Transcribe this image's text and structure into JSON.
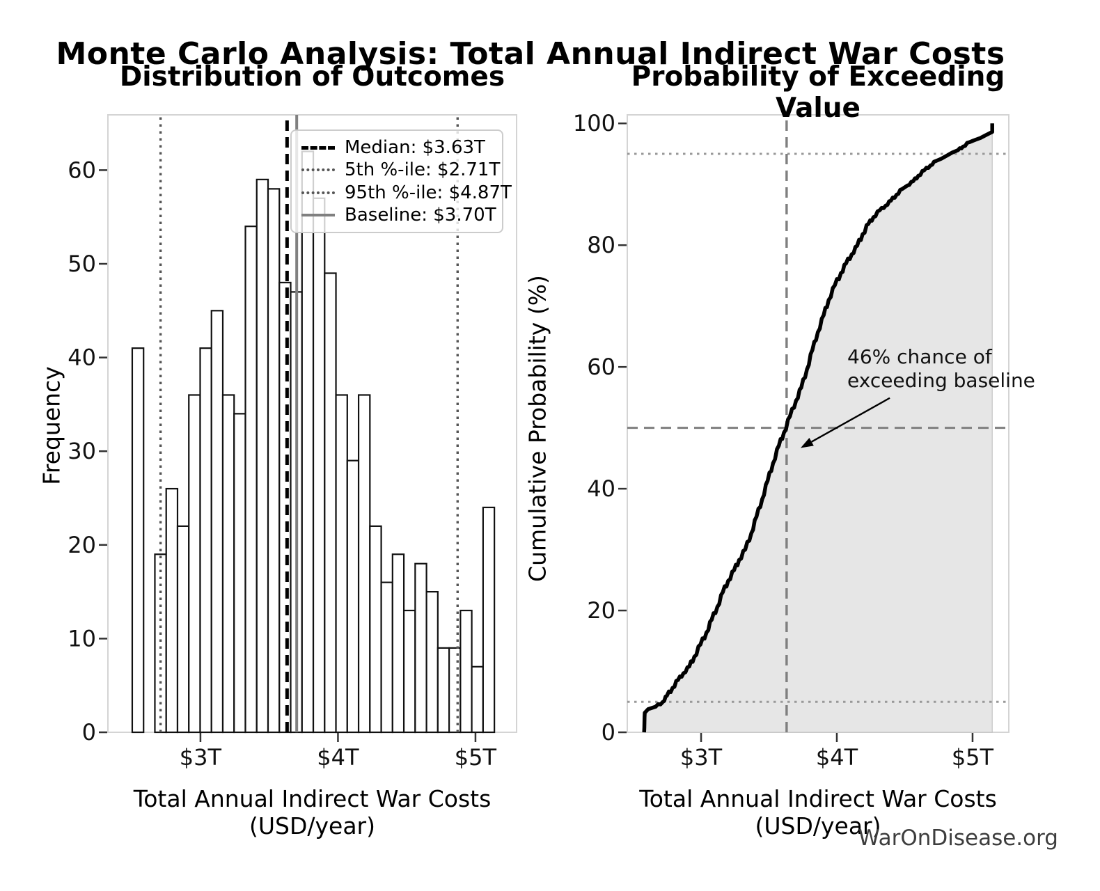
{
  "figure": {
    "title": "Monte Carlo Analysis: Total Annual Indirect War Costs",
    "watermark": "WarOnDisease.org",
    "background": "#ffffff"
  },
  "chart_data": [
    {
      "type": "bar",
      "subtype": "histogram",
      "title": "Distribution of Outcomes",
      "xlabel": "Total Annual Indirect War Costs (USD/year)",
      "ylabel": "Frequency",
      "bin_start": 2.504,
      "bin_width": 0.0823,
      "counts": [
        41,
        0,
        19,
        26,
        22,
        36,
        41,
        45,
        36,
        34,
        54,
        59,
        58,
        48,
        47,
        62,
        57,
        49,
        36,
        29,
        36,
        22,
        16,
        19,
        13,
        18,
        15,
        9,
        9,
        13,
        7,
        24
      ],
      "bar_fill": "#ffffff",
      "bar_edge": "#111111",
      "xlim": [
        2.327,
        5.299
      ],
      "ylim": [
        0,
        65.9
      ],
      "xticks": [
        {
          "value": 3,
          "label": "$3T"
        },
        {
          "value": 4,
          "label": "$4T"
        },
        {
          "value": 5,
          "label": "$5T"
        }
      ],
      "yticks": [
        {
          "value": 0,
          "label": "0"
        },
        {
          "value": 10,
          "label": "10"
        },
        {
          "value": 20,
          "label": "20"
        },
        {
          "value": 30,
          "label": "30"
        },
        {
          "value": 40,
          "label": "40"
        },
        {
          "value": 50,
          "label": "50"
        },
        {
          "value": 60,
          "label": "60"
        }
      ],
      "grid": false,
      "legend_position": "upper right",
      "vlines": [
        {
          "value": 3.63,
          "label": "Median: $3.63T",
          "style": "dashed",
          "color": "#000000",
          "width": 5
        },
        {
          "value": 2.71,
          "label": "5th %-ile: $2.71T",
          "style": "dotted",
          "color": "#555555",
          "width": 3.4
        },
        {
          "value": 4.87,
          "label": "95th %-ile: $4.87T",
          "style": "dotted",
          "color": "#555555",
          "width": 3.4
        },
        {
          "value": 3.7,
          "label": "Baseline: $3.70T",
          "style": "solid",
          "color": "#808080",
          "width": 4
        }
      ]
    },
    {
      "type": "line",
      "subtype": "cdf",
      "title": "Probability of Exceeding Value",
      "xlabel": "Total Annual Indirect War Costs (USD/year)",
      "ylabel": "Cumulative Probability (%)",
      "xlim": [
        2.456,
        5.267
      ],
      "ylim": [
        0,
        101.4
      ],
      "xticks": [
        {
          "value": 3,
          "label": "$3T"
        },
        {
          "value": 4,
          "label": "$4T"
        },
        {
          "value": 5,
          "label": "$5T"
        }
      ],
      "yticks": [
        {
          "value": 0,
          "label": "0"
        },
        {
          "value": 20,
          "label": "20"
        },
        {
          "value": 40,
          "label": "40"
        },
        {
          "value": 60,
          "label": "60"
        },
        {
          "value": 80,
          "label": "80"
        },
        {
          "value": 100,
          "label": "100"
        }
      ],
      "line_color": "#000000",
      "fill_color": "#e6e6e6",
      "curve_points": [
        [
          2.58,
          0
        ],
        [
          2.585,
          3.2
        ],
        [
          2.61,
          3.8
        ],
        [
          2.665,
          4.2
        ],
        [
          2.718,
          5.0
        ],
        [
          2.748,
          6.0
        ],
        [
          2.79,
          7.3
        ],
        [
          2.83,
          8.6
        ],
        [
          2.87,
          9.7
        ],
        [
          2.913,
          10.8
        ],
        [
          2.95,
          12.4
        ],
        [
          2.995,
          14.4
        ],
        [
          3.04,
          16.4
        ],
        [
          3.078,
          18.5
        ],
        [
          3.12,
          20.6
        ],
        [
          3.16,
          23.0
        ],
        [
          3.2,
          24.9
        ],
        [
          3.243,
          26.6
        ],
        [
          3.28,
          28.3
        ],
        [
          3.325,
          30.0
        ],
        [
          3.37,
          32.7
        ],
        [
          3.408,
          35.4
        ],
        [
          3.45,
          38.3
        ],
        [
          3.49,
          41.3
        ],
        [
          3.53,
          44.2
        ],
        [
          3.573,
          47.1
        ],
        [
          3.61,
          49.2
        ],
        [
          3.655,
          51.9
        ],
        [
          3.7,
          54.5
        ],
        [
          3.738,
          56.6
        ],
        [
          3.78,
          59.6
        ],
        [
          3.82,
          62.8
        ],
        [
          3.86,
          65.7
        ],
        [
          3.903,
          68.5
        ],
        [
          3.94,
          71.0
        ],
        [
          3.985,
          73.4
        ],
        [
          4.03,
          75.4
        ],
        [
          4.068,
          77.0
        ],
        [
          4.11,
          78.5
        ],
        [
          4.15,
          79.9
        ],
        [
          4.19,
          81.8
        ],
        [
          4.233,
          83.5
        ],
        [
          4.27,
          84.6
        ],
        [
          4.315,
          85.7
        ],
        [
          4.36,
          86.5
        ],
        [
          4.398,
          87.3
        ],
        [
          4.44,
          88.3
        ],
        [
          4.48,
          89.2
        ],
        [
          4.52,
          89.8
        ],
        [
          4.563,
          90.5
        ],
        [
          4.6,
          91.4
        ],
        [
          4.645,
          92.3
        ],
        [
          4.69,
          93.1
        ],
        [
          4.728,
          93.8
        ],
        [
          4.77,
          94.2
        ],
        [
          4.81,
          94.7
        ],
        [
          4.85,
          95.2
        ],
        [
          4.893,
          95.6
        ],
        [
          4.93,
          96.2
        ],
        [
          4.975,
          96.9
        ],
        [
          5.02,
          97.3
        ],
        [
          5.058,
          97.6
        ],
        [
          5.1,
          98.1
        ],
        [
          5.145,
          98.6
        ],
        [
          5.145,
          100
        ]
      ],
      "hlines": [
        {
          "value": 5,
          "style": "dotted",
          "color": "#999999",
          "width": 3
        },
        {
          "value": 50,
          "style": "dashed",
          "color": "#7f7f7f",
          "width": 3
        },
        {
          "value": 95,
          "style": "dotted",
          "color": "#999999",
          "width": 3
        }
      ],
      "vlines": [
        {
          "value": 3.63,
          "style": "dashed",
          "color": "#7f7f7f",
          "width": 3.4
        }
      ],
      "annotation": {
        "line1": "46% chance of",
        "line2": "exceeding baseline",
        "arrow_from": [
          4.39,
          54.9
        ],
        "arrow_to": [
          3.733,
          46.7
        ],
        "arrow_color": "#000000"
      }
    }
  ]
}
